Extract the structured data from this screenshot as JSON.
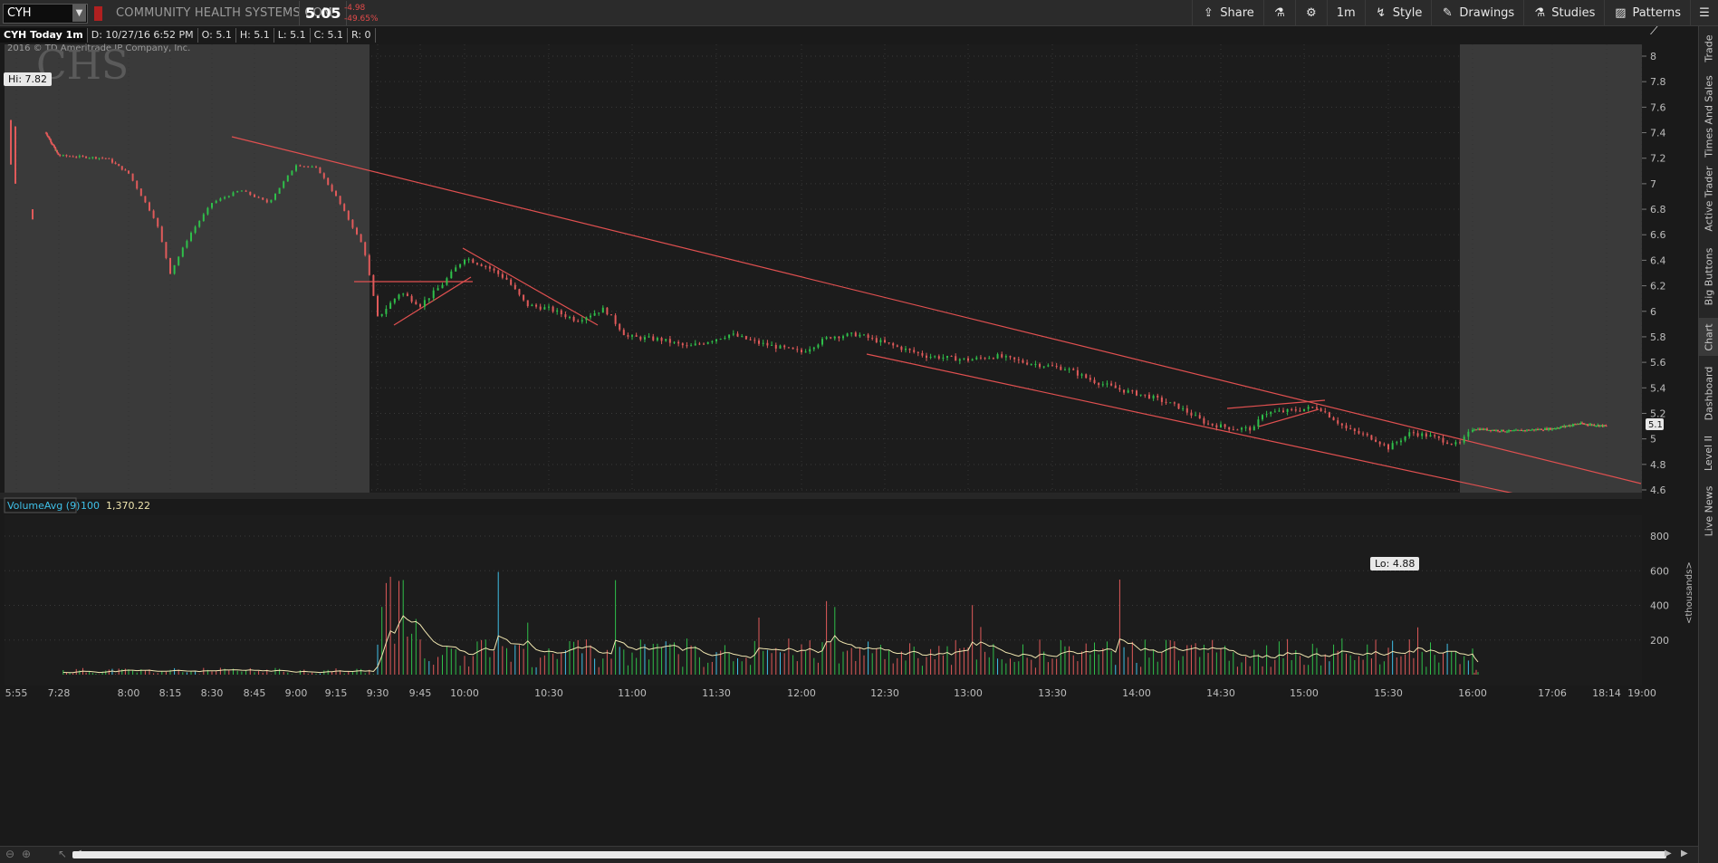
{
  "header": {
    "symbol": "CYH",
    "company": "COMMUNITY HEALTH SYSTEMS COM",
    "last_price": "5.05",
    "change": "-4.98",
    "change_pct": "-49.65%"
  },
  "toolbar": {
    "share": "Share",
    "timeframe": "1m",
    "style": "Style",
    "drawings": "Drawings",
    "studies": "Studies",
    "patterns": "Patterns"
  },
  "info": {
    "title": "CYH Today 1m",
    "date": "D: 10/27/16 6:52 PM",
    "open": "O: 5.1",
    "high": "H: 5.1",
    "low": "L: 5.1",
    "close": "C: 5.1",
    "range": "R: 0"
  },
  "chart": {
    "copyright": "2016 © TD Ameritrade IP Company, Inc.",
    "watermark": "CHS",
    "hi_label": "Hi: 7.82",
    "lo_label": "Lo: 4.88",
    "price_marker": "5.1",
    "volume_study": "VolumeAvg (9)",
    "volume_len": "100",
    "volume_value": "1,370.22",
    "volume_unit": "<thousands>"
  },
  "chart_data": {
    "type": "candlestick",
    "title": "CYH Today 1m",
    "price_axis_ticks": [
      "8",
      "7.8",
      "7.6",
      "7.4",
      "7.2",
      "7",
      "6.8",
      "6.6",
      "6.4",
      "6.2",
      "6",
      "5.8",
      "5.6",
      "5.4",
      "5.2",
      "5",
      "4.8",
      "4.6"
    ],
    "price_range": [
      4.57,
      8.17
    ],
    "volume_axis_ticks": [
      "800",
      "600",
      "400",
      "200"
    ],
    "volume_range": [
      0,
      930
    ],
    "time_ticks": [
      "5:55",
      "7:28",
      "8:00",
      "8:15",
      "8:30",
      "8:45",
      "9:00",
      "9:15",
      "9:30",
      "9:45",
      "10:00",
      "10:30",
      "11:00",
      "11:30",
      "12:00",
      "12:30",
      "13:00",
      "13:30",
      "14:00",
      "14:30",
      "15:00",
      "15:30",
      "16:00",
      "17:06",
      "18:14",
      "19:00"
    ],
    "price_path": [
      [
        "07:00",
        7.4
      ],
      [
        "07:28",
        7.22
      ],
      [
        "07:50",
        7.2
      ],
      [
        "08:00",
        7.08
      ],
      [
        "08:10",
        6.7
      ],
      [
        "08:15",
        6.3
      ],
      [
        "08:22",
        6.6
      ],
      [
        "08:30",
        6.85
      ],
      [
        "08:40",
        6.95
      ],
      [
        "08:50",
        6.85
      ],
      [
        "09:00",
        7.15
      ],
      [
        "09:08",
        7.12
      ],
      [
        "09:15",
        6.9
      ],
      [
        "09:25",
        6.5
      ],
      [
        "09:30",
        5.95
      ],
      [
        "09:38",
        6.15
      ],
      [
        "09:45",
        6.05
      ],
      [
        "09:52",
        6.2
      ],
      [
        "10:00",
        6.42
      ],
      [
        "10:08",
        6.35
      ],
      [
        "10:15",
        6.25
      ],
      [
        "10:22",
        6.05
      ],
      [
        "10:30",
        6.02
      ],
      [
        "10:40",
        5.93
      ],
      [
        "10:50",
        6.02
      ],
      [
        "10:58",
        5.8
      ],
      [
        "11:10",
        5.78
      ],
      [
        "11:20",
        5.72
      ],
      [
        "11:35",
        5.82
      ],
      [
        "11:45",
        5.75
      ],
      [
        "12:00",
        5.68
      ],
      [
        "12:10",
        5.8
      ],
      [
        "12:20",
        5.82
      ],
      [
        "12:30",
        5.75
      ],
      [
        "12:45",
        5.65
      ],
      [
        "13:00",
        5.62
      ],
      [
        "13:10",
        5.65
      ],
      [
        "13:20",
        5.6
      ],
      [
        "13:35",
        5.55
      ],
      [
        "13:45",
        5.45
      ],
      [
        "13:55",
        5.38
      ],
      [
        "14:05",
        5.33
      ],
      [
        "14:15",
        5.25
      ],
      [
        "14:25",
        5.12
      ],
      [
        "14:35",
        5.08
      ],
      [
        "14:42",
        5.08
      ],
      [
        "14:45",
        5.2
      ],
      [
        "14:55",
        5.22
      ],
      [
        "15:05",
        5.25
      ],
      [
        "15:15",
        5.08
      ],
      [
        "15:25",
        5.0
      ],
      [
        "15:30",
        4.93
      ],
      [
        "15:38",
        5.05
      ],
      [
        "15:45",
        5.02
      ],
      [
        "15:55",
        4.95
      ],
      [
        "16:00",
        5.08
      ],
      [
        "16:30",
        5.06
      ],
      [
        "17:06",
        5.08
      ],
      [
        "17:40",
        5.12
      ],
      [
        "18:14",
        5.1
      ]
    ],
    "legend": "top-left"
  }
}
